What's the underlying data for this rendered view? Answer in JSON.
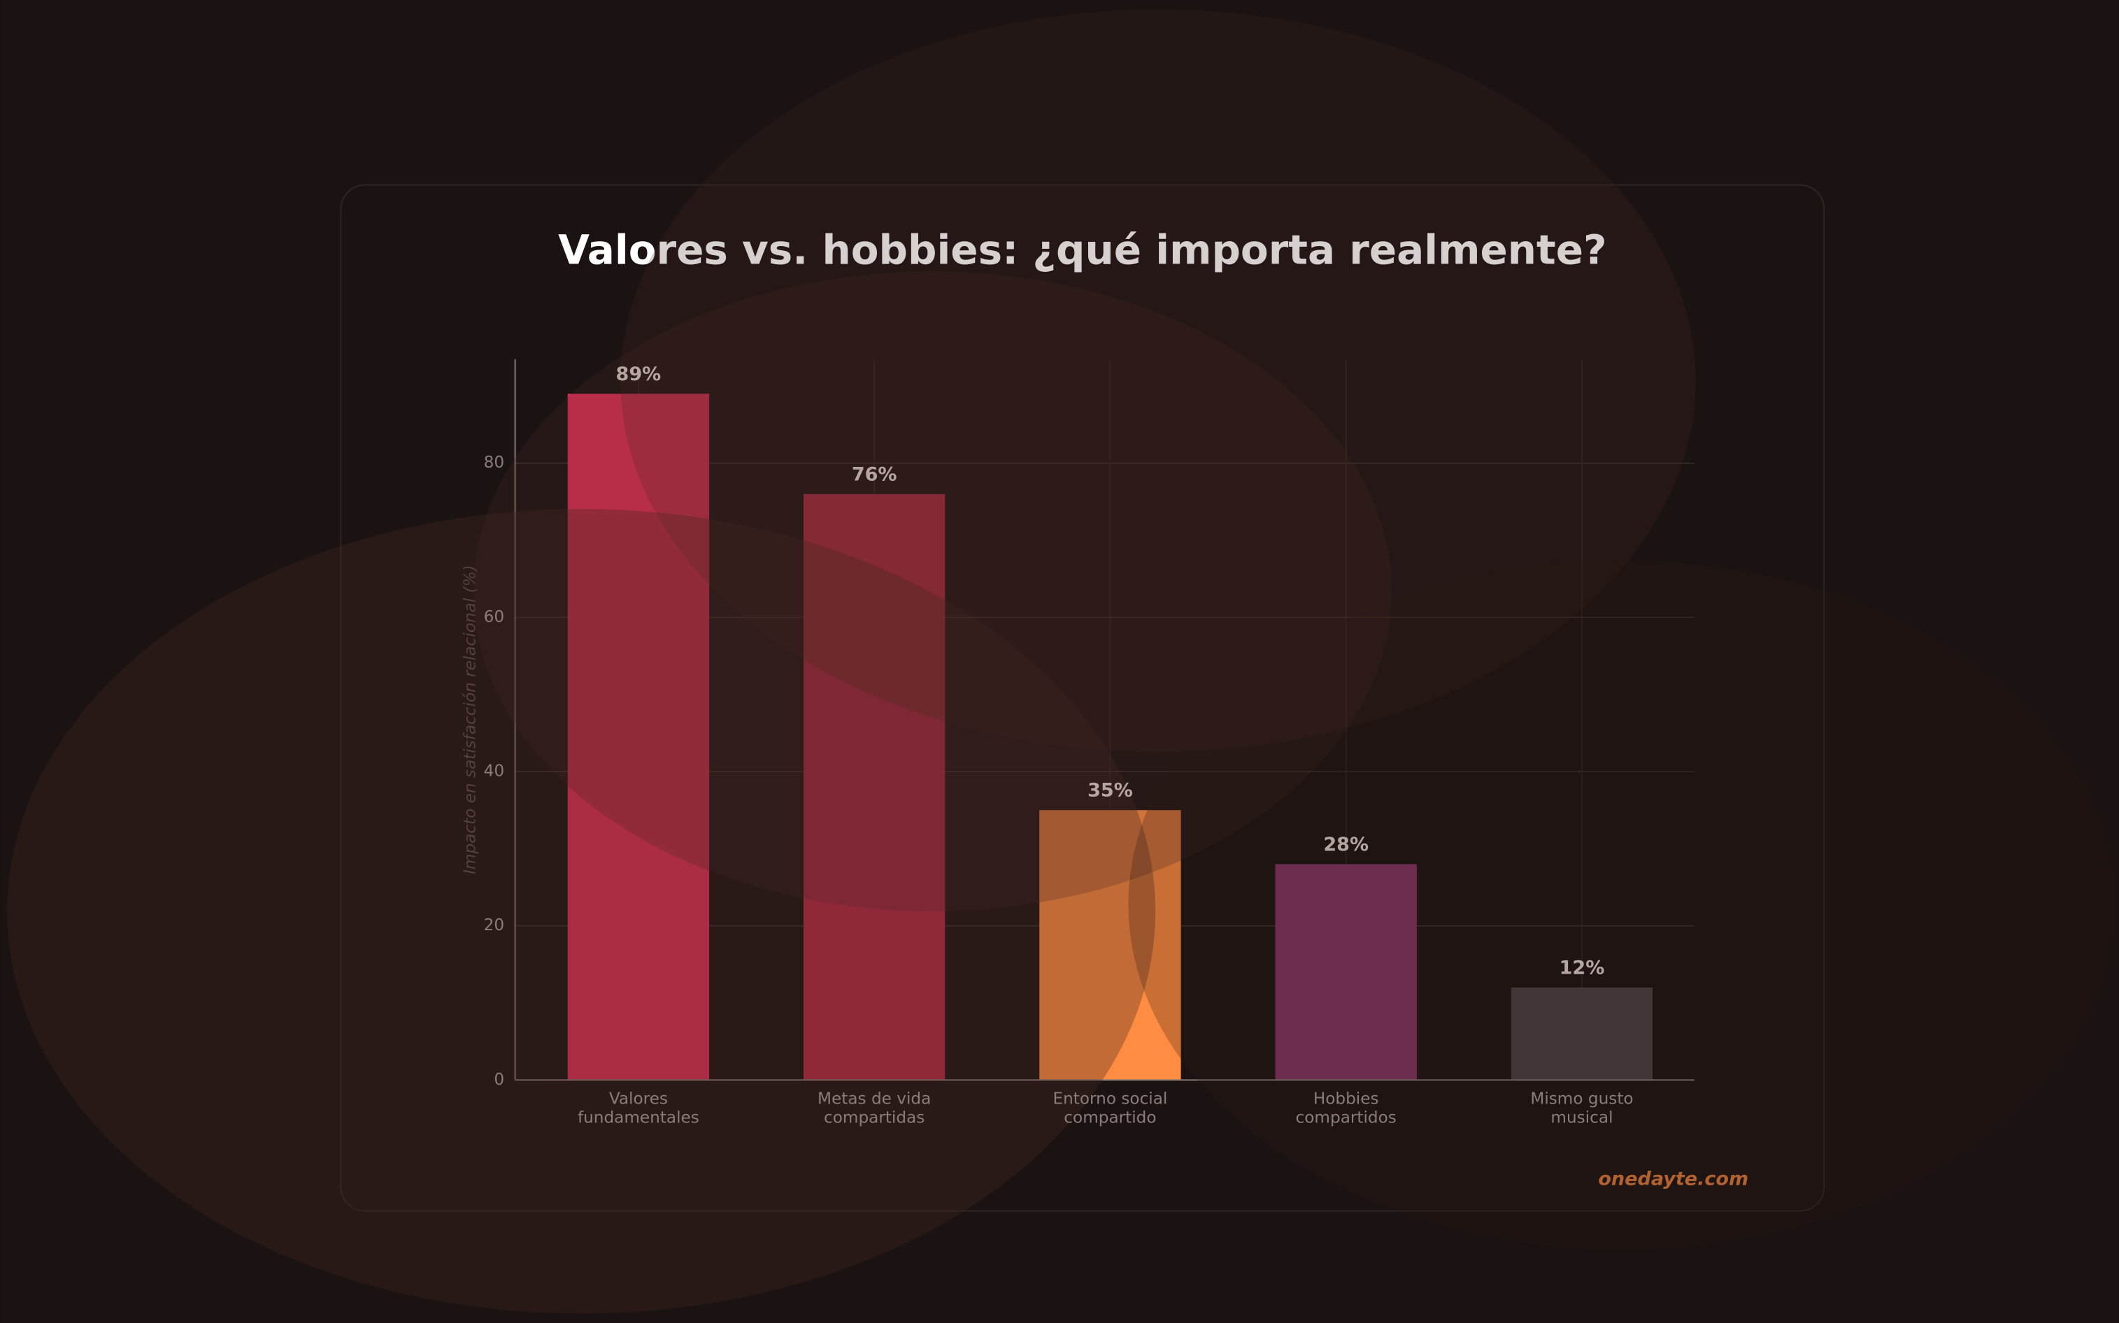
{
  "chart_data": {
    "type": "bar",
    "title": "Valores vs. hobbies: ¿qué importa realmente?",
    "y_label": "Impacto en satisfacción relacional (%)",
    "categories": [
      "Valores\nfundamentales",
      "Metas de vida\ncompartidas",
      "Entorno social\ncompartido",
      "Hobbies\ncompartidos",
      "Mismo gusto\nmusical"
    ],
    "values": [
      89,
      76,
      35,
      28,
      12
    ],
    "value_labels": [
      "89%",
      "76%",
      "35%",
      "28%",
      "12%"
    ],
    "colors": [
      "#dc2f57",
      "#b42a46",
      "#ff8c42",
      "#833562",
      "#4a4242"
    ],
    "ylim": [
      0,
      93.5
    ],
    "yticks": [
      0,
      20,
      40,
      60,
      80
    ],
    "grid": true,
    "watermark": "onedayte.com"
  }
}
